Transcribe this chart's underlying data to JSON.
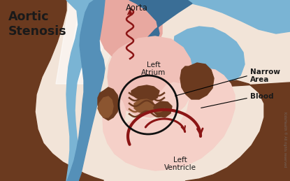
{
  "bg_color": "#f2e4d8",
  "title_line1": "Aortic",
  "title_line2": "Stenosis",
  "title_color": "#1a1a1a",
  "title_fontsize": 12.5,
  "label_aorta": "Aorta",
  "label_left_atrium_line1": "Left",
  "label_left_atrium_line2": "Atrium",
  "label_narrow_area_line1": "Narrow",
  "label_narrow_area_line2": "Area",
  "label_blood": "Blood",
  "label_left_ventricle_line1": "Left",
  "label_left_ventricle_line2": "Ventricle",
  "label_color": "#1a1a1a",
  "label_fontsize": 7.5,
  "blue_light": "#7ab4d4",
  "blue_mid": "#5590b8",
  "blue_dark": "#3a6e96",
  "pink_aorta": "#e8a8a0",
  "pink_atrium": "#f0c0b8",
  "pink_ventricle": "#f5d0c8",
  "brown_dark": "#6b3a1f",
  "brown_mid": "#8b5530",
  "brown_light": "#a06838",
  "red_arrow": "#8b1515",
  "circle_color": "#111111",
  "watermark": "KidsHealth ® All rights reserved"
}
